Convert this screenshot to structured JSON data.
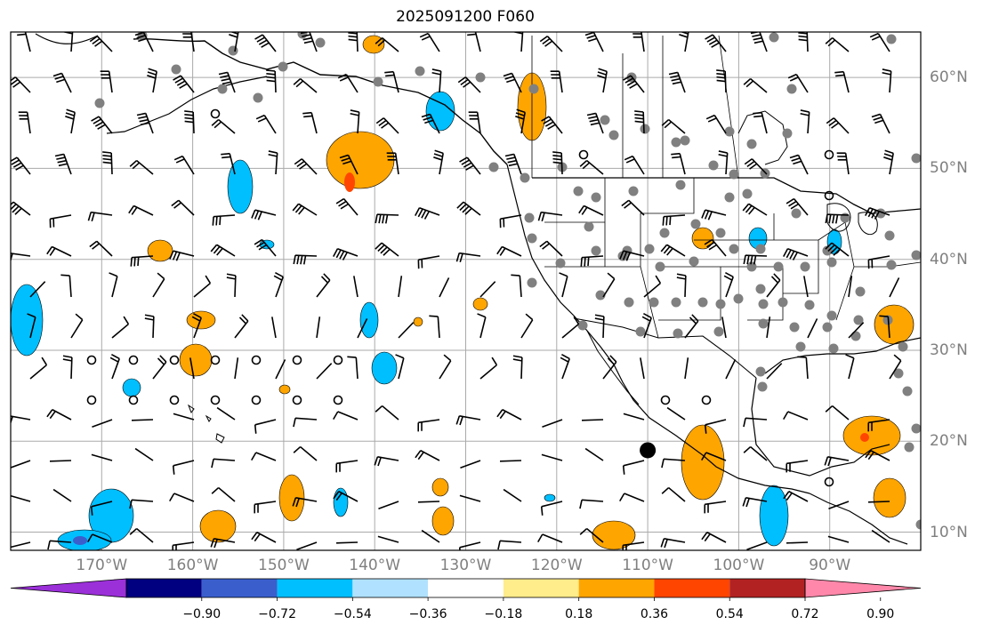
{
  "title": "2025091200 F060",
  "map": {
    "lon_range": [
      -180,
      -80
    ],
    "lat_range": [
      8,
      65
    ],
    "lat_labels": [
      "10°N",
      "20°N",
      "30°N",
      "40°N",
      "50°N",
      "60°N"
    ],
    "lat_values": [
      10,
      20,
      30,
      40,
      50,
      60
    ],
    "lon_labels": [
      "170°W",
      "160°W",
      "150°W",
      "140°W",
      "130°W",
      "120°W",
      "110°W",
      "100°W",
      "90°W"
    ],
    "lon_values": [
      -170,
      -160,
      -150,
      -140,
      -130,
      -120,
      -110,
      -100,
      -90
    ],
    "grid": true,
    "land_color": "#ffffff",
    "ocean_color": "#ffffff",
    "coastline_color": "#000000",
    "station_dot_color": "#808080",
    "marked_station": {
      "lon": -110,
      "lat": 19
    }
  },
  "colorbar": {
    "colors": [
      "#9b30d9",
      "#000080",
      "#3a5fcd",
      "#00bfff",
      "#b0e2ff",
      "#ffffff",
      "#ffec8b",
      "#ffa500",
      "#ff4500",
      "#b22222",
      "#ff88aa"
    ],
    "tick_labels": [
      "−0.90",
      "−0.72",
      "−0.54",
      "−0.36",
      "−0.18",
      "0.18",
      "0.36",
      "0.54",
      "0.72",
      "0.90"
    ],
    "extend": "both"
  },
  "field_contours": {
    "positive_color": "#ffa500",
    "positive_core_color": "#ff4500",
    "negative_color": "#00bfff",
    "negative_core_color": "#3a5fcd"
  }
}
